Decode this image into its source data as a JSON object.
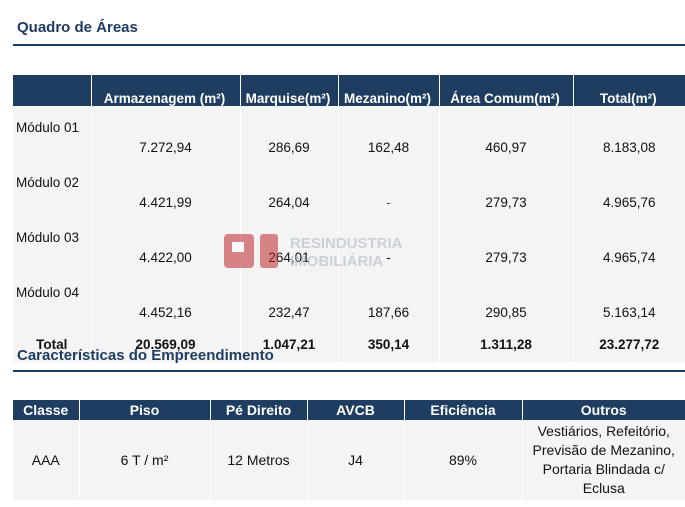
{
  "areas": {
    "title": "Quadro de Áreas",
    "headers": [
      "",
      "Armazenagem (m²)",
      "Marquise(m²)",
      "Mezanino(m²)",
      "Área Comum(m²)",
      "Total(m²)"
    ],
    "rows": [
      [
        "Módulo 01",
        "7.272,94",
        "286,69",
        "162,48",
        "460,97",
        "8.183,08"
      ],
      [
        "Módulo 02",
        "4.421,99",
        "264,04",
        "-",
        "279,73",
        "4.965,76"
      ],
      [
        "Módulo 03",
        "4.422,00",
        "264,01",
        "-",
        "279,73",
        "4.965,74"
      ],
      [
        "Módulo 04",
        "4.452,16",
        "232,47",
        "187,66",
        "290,85",
        "5.163,14"
      ]
    ],
    "total": [
      "Total",
      "20.569,09",
      "1.047,21",
      "350,14",
      "1.311,28",
      "23.277,72"
    ]
  },
  "caracteristicas": {
    "title": "Características do Empreendimento",
    "headers": [
      "Classe",
      "Piso",
      "Pé Direito",
      "AVCB",
      "Eficiência",
      "Outros"
    ],
    "values": [
      "AAA",
      "6 T / m²",
      "12 Metros",
      "J4",
      "89%"
    ],
    "outros_lines": [
      "Vestiários, Refeitório,",
      "Previsão de Mezanino,",
      "Portaria Blindada c/",
      "Eclusa"
    ]
  },
  "watermark": {
    "logo_letters": "RI",
    "line1": "RESINDUSTRIA",
    "line2": "IMOBILIÁRIA",
    "brand_color": "#c0282d"
  },
  "colors": {
    "header_bg": "#1f3c61",
    "cell_bg": "#f4f4f4"
  }
}
